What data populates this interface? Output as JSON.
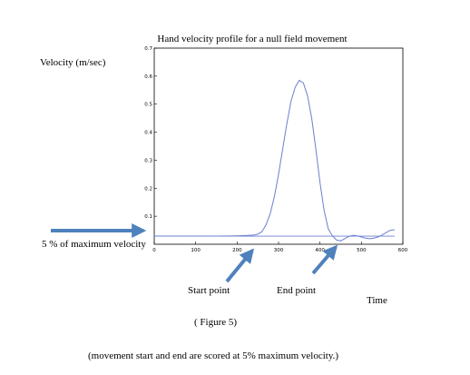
{
  "chart_data": {
    "type": "line",
    "title": "Hand velocity profile for a null field movement",
    "ylabel": "Velocity (m/sec)",
    "xlabel": "Time",
    "xlim": [
      0,
      600
    ],
    "ylim": [
      0,
      0.7
    ],
    "x_ticks": [
      "0",
      "100",
      "200",
      "300",
      "400",
      "500",
      "600"
    ],
    "y_ticks": [
      "0.1",
      "0.2",
      "0.3",
      "0.4",
      "0.5",
      "0.6",
      "0.7"
    ],
    "series": [
      {
        "color": "#6b7fd0",
        "x": [
          0,
          50,
          100,
          150,
          200,
          220,
          240,
          250,
          260,
          270,
          280,
          290,
          300,
          310,
          320,
          330,
          340,
          350,
          360,
          370,
          380,
          390,
          400,
          410,
          420,
          430,
          440,
          450,
          460,
          470,
          480,
          490,
          500,
          510,
          520,
          530,
          540,
          550,
          560,
          570,
          580
        ],
        "y": [
          0.029,
          0.029,
          0.029,
          0.029,
          0.03,
          0.031,
          0.033,
          0.036,
          0.045,
          0.07,
          0.11,
          0.17,
          0.25,
          0.34,
          0.43,
          0.51,
          0.56,
          0.585,
          0.575,
          0.53,
          0.45,
          0.34,
          0.22,
          0.12,
          0.055,
          0.03,
          0.015,
          0.012,
          0.02,
          0.028,
          0.032,
          0.03,
          0.026,
          0.022,
          0.02,
          0.022,
          0.026,
          0.033,
          0.042,
          0.05,
          0.052
        ]
      }
    ],
    "threshold": {
      "value": 0.029,
      "color": "#6b7fd0"
    },
    "grid": false
  },
  "annotations": {
    "threshold_label": "5 % of maximum velocity",
    "start_label": "Start point",
    "end_label": "End point",
    "figure_label": "( Figure  5)",
    "caption": "(movement start and end are scored at 5% maximum velocity.)",
    "arrow_color": "#4f81bd"
  }
}
